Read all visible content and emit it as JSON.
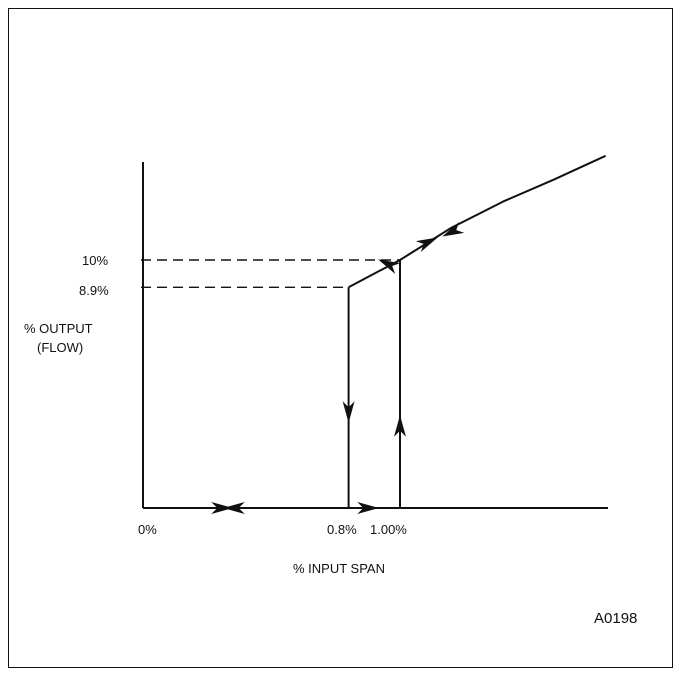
{
  "figure_id": "A0198",
  "chart_data": {
    "type": "line",
    "xlabel": "% INPUT SPAN",
    "ylabel_line1": "% OUTPUT",
    "ylabel_line2": "(FLOW)",
    "x_ticks": [
      "0%",
      "0.8%",
      "1.00%"
    ],
    "y_ticks": [
      "10%",
      "8.9%"
    ],
    "series": [
      {
        "direction": "increasing input",
        "points": [
          [
            0,
            0
          ],
          [
            1.0,
            0
          ],
          [
            1.0,
            10
          ],
          [
            1.35,
            12.2
          ],
          [
            1.8,
            14.2
          ]
        ]
      },
      {
        "direction": "decreasing input",
        "points": [
          [
            1.8,
            14.2
          ],
          [
            1.35,
            12.2
          ],
          [
            1.0,
            10
          ],
          [
            0.8,
            8.9
          ],
          [
            0.8,
            0
          ],
          [
            0,
            0
          ]
        ]
      }
    ],
    "reference_lines": [
      {
        "y": 10,
        "style": "dashed"
      },
      {
        "y": 8.9,
        "style": "dashed"
      }
    ],
    "curve": [
      [
        0.8,
        8.9
      ],
      [
        1.0,
        10
      ],
      [
        1.2,
        11.3
      ],
      [
        1.4,
        12.35
      ],
      [
        1.6,
        13.25
      ],
      [
        1.8,
        14.2
      ]
    ]
  }
}
